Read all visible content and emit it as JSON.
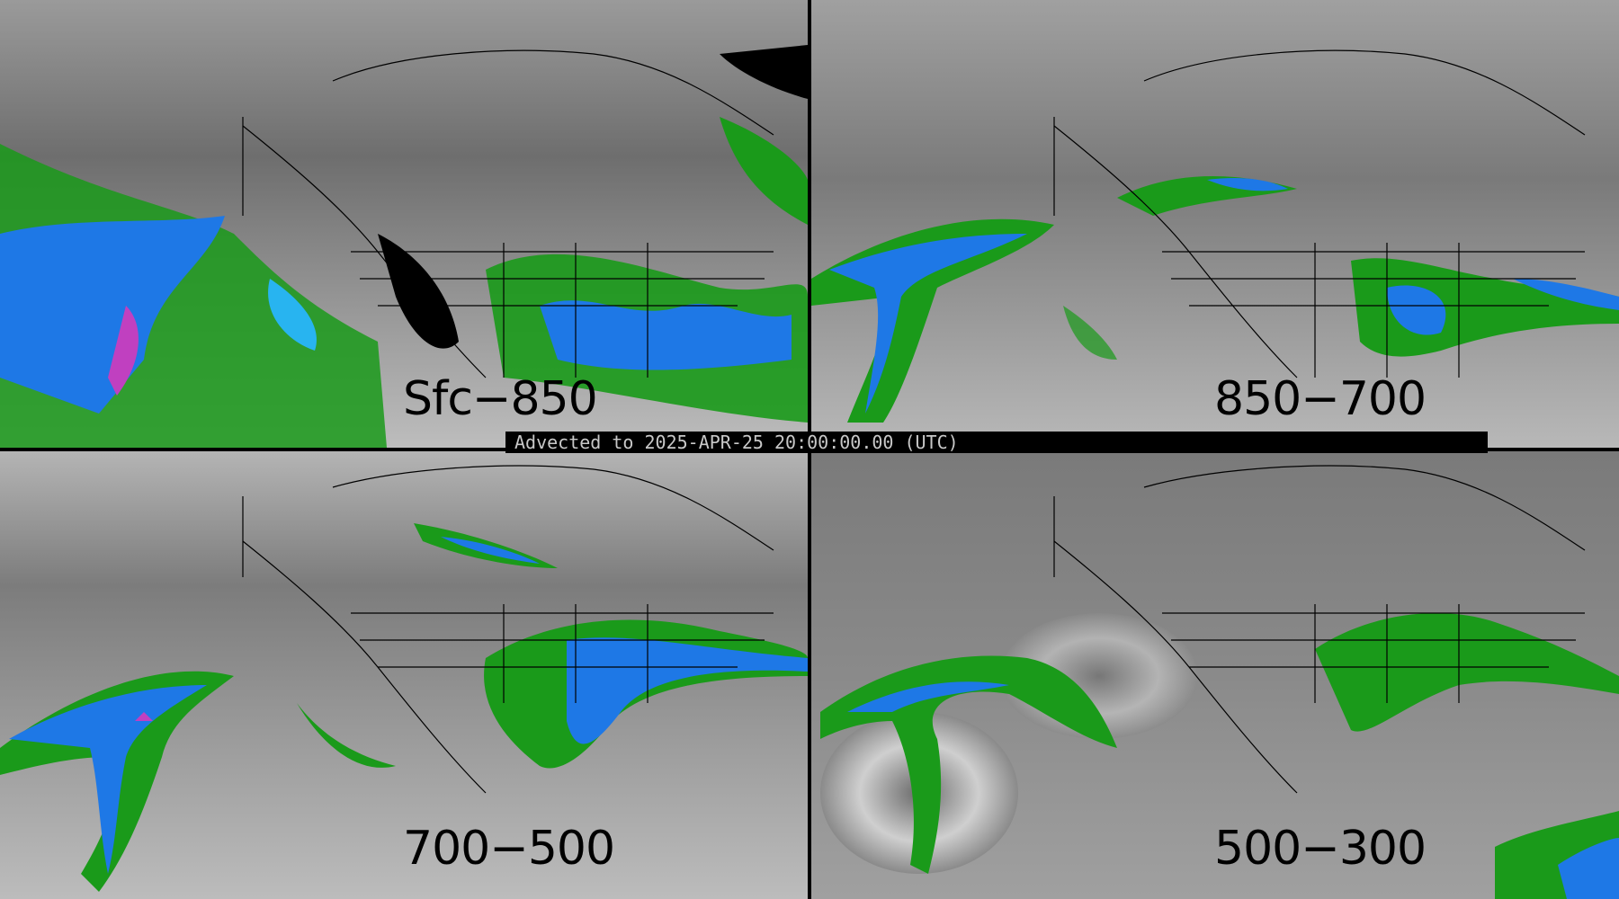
{
  "banner": {
    "text": "Advected to 2025-APR-25 20:00:00.00 (UTC)"
  },
  "panels": [
    {
      "label": "Sfc−850"
    },
    {
      "label": "850−700"
    },
    {
      "label": "700−500"
    },
    {
      "label": "500−300"
    }
  ],
  "colors": {
    "background_gray": "#8a8a8a",
    "green": "#1a9a1a",
    "blue": "#1e78e6",
    "cyan": "#28b4f0",
    "magenta": "#c040c0",
    "coastline": "#000000"
  }
}
